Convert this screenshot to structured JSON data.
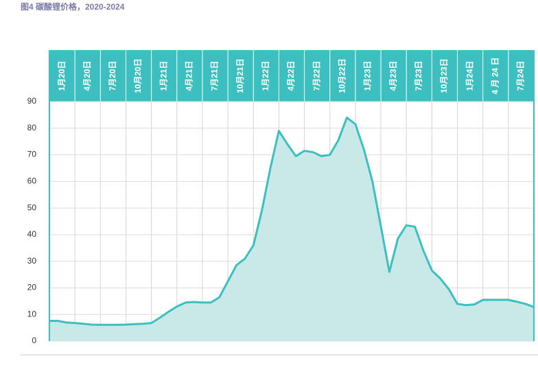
{
  "chart_data": {
    "type": "area",
    "title": "图4 碳酸锂价格，2020-2024",
    "categories": [
      "1月20日",
      null,
      null,
      "4月20日",
      null,
      null,
      "7月20日",
      null,
      null,
      "10月20日",
      null,
      null,
      "1月21日",
      null,
      null,
      "4月21日",
      null,
      null,
      "7月21日",
      null,
      null,
      "10月21日",
      null,
      null,
      "1月22日",
      null,
      null,
      "4月22日",
      null,
      null,
      "7月22日",
      null,
      null,
      "10月22日",
      null,
      null,
      "1月23日",
      null,
      null,
      "4月23日",
      null,
      null,
      "7月23日",
      null,
      null,
      "10月23日",
      null,
      null,
      "1月24日",
      null,
      null,
      "4 月 24 日",
      null,
      null,
      "7月24日",
      null,
      null,
      null
    ],
    "values": [
      7.6,
      7.6,
      7.0,
      6.8,
      6.5,
      6.2,
      6.1,
      6.1,
      6.1,
      6.2,
      6.4,
      6.5,
      6.8,
      8.8,
      11,
      13,
      14.5,
      14.7,
      14.5,
      14.5,
      16.5,
      22.5,
      28.5,
      31,
      36,
      49,
      65,
      79,
      74,
      69.5,
      71.5,
      71,
      69.5,
      70,
      75.5,
      84,
      81.5,
      72,
      60,
      43,
      26,
      38.5,
      43.5,
      43,
      34,
      26.5,
      23.5,
      19.5,
      14,
      13.5,
      13.8,
      15.5,
      15.5,
      15.5,
      15.5,
      14.8,
      14,
      12.8
    ],
    "color": "#3dbfbf",
    "fill": "#c9e9e9",
    "ylim": [
      0,
      90
    ],
    "yticks": [
      0,
      10,
      20,
      30,
      40,
      50,
      60,
      70,
      80,
      90
    ],
    "grid": true
  }
}
